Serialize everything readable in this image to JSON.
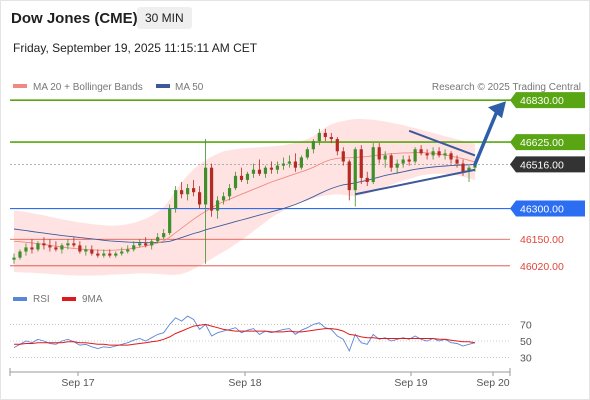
{
  "header": {
    "title": "Dow Jones (CME)",
    "interval": "30 MIN",
    "timestamp": "Friday, September 19, 2025 11:15:11 AM CET"
  },
  "colors": {
    "green": "#5aa513",
    "blue": "#2b6ef2",
    "red": "#e0443a",
    "dark": "#333333",
    "bull": "#3f8f2b",
    "bear": "#b52a22",
    "ma50": "#3c5a9a",
    "ma20": "#f08a80",
    "band": "#ffd9d9",
    "arrow": "#2f5ea8",
    "rsi": "#5b86d8",
    "rsi_ma": "#e01a1a"
  },
  "chart_data": [
    {
      "type": "candlestick",
      "title": "Dow Jones (CME)",
      "legend": [
        {
          "name": "MA 20 + Bollinger Bands",
          "color": "#f08a80"
        },
        {
          "name": "MA 50",
          "color": "#3c5a9a"
        }
      ],
      "source": "Research © 2025 Trading Central",
      "x_labels": [
        "Sep 17",
        "Sep 18",
        "Sep 19",
        "Sep 20"
      ],
      "ylim": [
        45980,
        46870
      ],
      "levels": [
        {
          "value": 46830,
          "label": "46830.00",
          "kind": "resistance",
          "style": "tag",
          "color": "#5aa513"
        },
        {
          "value": 46625,
          "label": "46625.00",
          "kind": "resistance",
          "style": "tag",
          "color": "#5aa513"
        },
        {
          "value": 46516,
          "label": "46516.00",
          "kind": "last",
          "style": "tag",
          "color": "#333333"
        },
        {
          "value": 46300,
          "label": "46300.00",
          "kind": "pivot",
          "style": "tag",
          "color": "#2b6ef2"
        },
        {
          "value": 46150,
          "label": "46150.00",
          "kind": "support",
          "style": "text",
          "color": "#e0443a"
        },
        {
          "value": 46020,
          "label": "46020.00",
          "kind": "support",
          "style": "text",
          "color": "#e0443a"
        }
      ],
      "candles": [
        [
          46050,
          46080,
          46030,
          46060
        ],
        [
          46060,
          46100,
          46050,
          46090
        ],
        [
          46090,
          46130,
          46070,
          46110
        ],
        [
          46110,
          46150,
          46080,
          46100
        ],
        [
          46100,
          46140,
          46090,
          46130
        ],
        [
          46130,
          46160,
          46100,
          46120
        ],
        [
          46120,
          46150,
          46090,
          46110
        ],
        [
          46110,
          46140,
          46090,
          46100
        ],
        [
          46100,
          46130,
          46080,
          46120
        ],
        [
          46120,
          46150,
          46100,
          46130
        ],
        [
          46130,
          46160,
          46110,
          46120
        ],
        [
          46120,
          46140,
          46080,
          46090
        ],
        [
          46090,
          46120,
          46070,
          46100
        ],
        [
          46100,
          46120,
          46070,
          46080
        ],
        [
          46080,
          46100,
          46060,
          46070
        ],
        [
          46070,
          46100,
          46060,
          46080
        ],
        [
          46080,
          46100,
          46060,
          46070
        ],
        [
          46070,
          46090,
          46060,
          46080
        ],
        [
          46080,
          46110,
          46070,
          46090
        ],
        [
          46090,
          46120,
          46080,
          46100
        ],
        [
          46100,
          46140,
          46090,
          46120
        ],
        [
          46120,
          46150,
          46110,
          46130
        ],
        [
          46130,
          46160,
          46110,
          46120
        ],
        [
          46120,
          46150,
          46100,
          46140
        ],
        [
          46140,
          46180,
          46130,
          46160
        ],
        [
          46160,
          46200,
          46150,
          46180
        ],
        [
          46180,
          46320,
          46170,
          46300
        ],
        [
          46300,
          46410,
          46280,
          46390
        ],
        [
          46390,
          46430,
          46350,
          46370
        ],
        [
          46370,
          46420,
          46340,
          46400
        ],
        [
          46400,
          46440,
          46360,
          46380
        ],
        [
          46380,
          46410,
          46300,
          46320
        ],
        [
          46320,
          46640,
          46030,
          46500
        ],
        [
          46500,
          46520,
          46260,
          46290
        ],
        [
          46290,
          46360,
          46250,
          46340
        ],
        [
          46340,
          46380,
          46320,
          46360
        ],
        [
          46360,
          46420,
          46340,
          46400
        ],
        [
          46400,
          46480,
          46390,
          46460
        ],
        [
          46460,
          46500,
          46430,
          46440
        ],
        [
          46440,
          46480,
          46420,
          46470
        ],
        [
          46470,
          46520,
          46450,
          46490
        ],
        [
          46490,
          46540,
          46460,
          46470
        ],
        [
          46470,
          46510,
          46450,
          46500
        ],
        [
          46500,
          46530,
          46470,
          46490
        ],
        [
          46490,
          46530,
          46470,
          46510
        ],
        [
          46510,
          46550,
          46490,
          46520
        ],
        [
          46520,
          46560,
          46500,
          46530
        ],
        [
          46530,
          46570,
          46480,
          46500
        ],
        [
          46500,
          46560,
          46490,
          46550
        ],
        [
          46550,
          46600,
          46540,
          46590
        ],
        [
          46590,
          46640,
          46570,
          46630
        ],
        [
          46630,
          46690,
          46610,
          46670
        ],
        [
          46670,
          46690,
          46630,
          46650
        ],
        [
          46650,
          46670,
          46620,
          46640
        ],
        [
          46640,
          46650,
          46560,
          46580
        ],
        [
          46580,
          46600,
          46510,
          46530
        ],
        [
          46530,
          46540,
          46340,
          46390
        ],
        [
          46390,
          46600,
          46310,
          46590
        ],
        [
          46590,
          46610,
          46420,
          46450
        ],
        [
          46450,
          46480,
          46410,
          46430
        ],
        [
          46430,
          46620,
          46420,
          46600
        ],
        [
          46600,
          46620,
          46520,
          46540
        ],
        [
          46540,
          46580,
          46500,
          46560
        ],
        [
          46560,
          46570,
          46480,
          46500
        ],
        [
          46500,
          46540,
          46470,
          46520
        ],
        [
          46520,
          46560,
          46500,
          46540
        ],
        [
          46540,
          46560,
          46510,
          46530
        ],
        [
          46530,
          46600,
          46520,
          46590
        ],
        [
          46590,
          46610,
          46560,
          46570
        ],
        [
          46570,
          46590,
          46540,
          46560
        ],
        [
          46560,
          46600,
          46540,
          46580
        ],
        [
          46580,
          46600,
          46550,
          46560
        ],
        [
          46560,
          46590,
          46540,
          46570
        ],
        [
          46570,
          46580,
          46520,
          46540
        ],
        [
          46540,
          46560,
          46500,
          46520
        ],
        [
          46520,
          46540,
          46460,
          46480
        ],
        [
          46480,
          46510,
          46430,
          46500
        ],
        [
          46500,
          46530,
          46480,
          46516
        ]
      ],
      "ma50": [
        46200,
        46196,
        46192,
        46188,
        46184,
        46180,
        46176,
        46172,
        46168,
        46165,
        46162,
        46158,
        46155,
        46152,
        46148,
        46145,
        46142,
        46140,
        46138,
        46136,
        46135,
        46134,
        46133,
        46133,
        46134,
        46136,
        46140,
        46148,
        46158,
        46168,
        46178,
        46186,
        46196,
        46204,
        46212,
        46220,
        46228,
        46236,
        46244,
        46252,
        46260,
        46268,
        46276,
        46284,
        46292,
        46300,
        46310,
        46320,
        46332,
        46345,
        46358,
        46372,
        46386,
        46398,
        46408,
        46416,
        46420,
        46426,
        46432,
        46438,
        46446,
        46454,
        46462,
        46468,
        46474,
        46480,
        46486,
        46492,
        46496,
        46500,
        46503,
        46506,
        46508,
        46510,
        46512,
        46513,
        46514,
        46516
      ],
      "ma20": [
        46140,
        46138,
        46135,
        46132,
        46128,
        46125,
        46120,
        46116,
        46112,
        46108,
        46105,
        46102,
        46100,
        46098,
        46097,
        46096,
        46096,
        46097,
        46099,
        46102,
        46106,
        46111,
        46117,
        46124,
        46132,
        46142,
        46160,
        46182,
        46204,
        46226,
        46248,
        46268,
        46286,
        46304,
        46320,
        46334,
        46346,
        46358,
        46370,
        46382,
        46394,
        46406,
        46418,
        46430,
        46440,
        46450,
        46460,
        46470,
        46480,
        46490,
        46502,
        46516,
        46530,
        46540,
        46546,
        46548,
        46548,
        46550,
        46552,
        46554,
        46558,
        46562,
        46566,
        46568,
        46570,
        46572,
        46572,
        46574,
        46574,
        46572,
        46570,
        46566,
        46562,
        46556,
        46550,
        46544,
        46536,
        46528
      ],
      "bb_width": [
        150,
        150,
        148,
        146,
        144,
        142,
        140,
        138,
        136,
        134,
        132,
        130,
        128,
        126,
        124,
        122,
        120,
        120,
        120,
        122,
        124,
        128,
        134,
        142,
        152,
        164,
        184,
        206,
        224,
        236,
        244,
        248,
        250,
        250,
        248,
        246,
        240,
        232,
        224,
        214,
        204,
        194,
        184,
        174,
        166,
        160,
        156,
        152,
        150,
        150,
        152,
        158,
        166,
        172,
        176,
        180,
        186,
        188,
        186,
        182,
        176,
        168,
        160,
        152,
        144,
        136,
        128,
        120,
        112,
        106,
        100,
        96,
        92,
        90,
        88,
        88,
        88,
        90
      ],
      "triangle": [
        {
          "from": [
            66,
            46680
          ],
          "to": [
            77,
            46560
          ]
        },
        {
          "from": [
            57,
            46370
          ],
          "to": [
            77,
            46490
          ]
        }
      ],
      "projection": {
        "from": [
          77,
          46516
        ],
        "to": [
          80,
          46810
        ]
      }
    },
    {
      "type": "line",
      "legend": [
        {
          "name": "RSI",
          "color": "#5b86d8"
        },
        {
          "name": "9MA",
          "color": "#e01a1a"
        }
      ],
      "ylim": [
        15,
        85
      ],
      "y_ticks": [
        70,
        50,
        30
      ],
      "rsi": [
        42,
        46,
        50,
        48,
        52,
        50,
        47,
        46,
        50,
        52,
        49,
        45,
        46,
        43,
        41,
        43,
        42,
        44,
        46,
        48,
        51,
        53,
        50,
        54,
        58,
        60,
        70,
        78,
        74,
        80,
        76,
        64,
        70,
        56,
        60,
        62,
        64,
        66,
        60,
        63,
        65,
        58,
        62,
        60,
        62,
        64,
        65,
        58,
        63,
        66,
        70,
        72,
        66,
        64,
        56,
        52,
        38,
        58,
        48,
        46,
        58,
        52,
        54,
        50,
        52,
        54,
        52,
        56,
        52,
        50,
        53,
        50,
        52,
        48,
        47,
        44,
        46,
        48
      ],
      "rsi_ma": [
        46,
        46,
        47,
        47,
        48,
        48,
        48,
        48,
        48,
        49,
        49,
        48,
        48,
        47,
        46,
        46,
        45,
        45,
        45,
        45,
        46,
        47,
        48,
        49,
        50,
        52,
        55,
        59,
        62,
        65,
        68,
        69,
        70,
        68,
        66,
        64,
        63,
        62,
        62,
        62,
        62,
        62,
        62,
        61,
        61,
        61,
        62,
        61,
        61,
        62,
        63,
        64,
        65,
        65,
        64,
        62,
        58,
        57,
        55,
        54,
        54,
        53,
        53,
        53,
        53,
        53,
        53,
        53,
        53,
        53,
        53,
        52,
        52,
        51,
        50,
        49,
        49,
        48
      ]
    }
  ]
}
